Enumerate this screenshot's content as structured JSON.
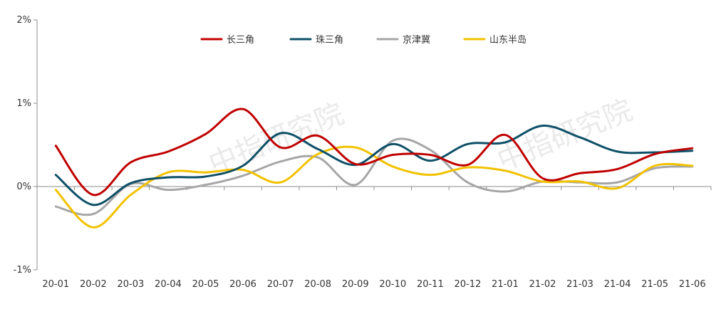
{
  "chart_data": {
    "type": "line",
    "title": "",
    "xlabel": "",
    "ylabel": "",
    "ylim": [
      -1,
      2
    ],
    "yticks": [
      -1,
      0,
      1,
      2
    ],
    "ytick_labels": [
      "-1%",
      "0%",
      "1%",
      "2%"
    ],
    "categories": [
      "20-01",
      "20-02",
      "20-03",
      "20-04",
      "20-05",
      "20-06",
      "20-07",
      "20-08",
      "20-09",
      "20-10",
      "20-11",
      "20-12",
      "21-01",
      "21-02",
      "21-03",
      "21-04",
      "21-05",
      "21-06"
    ],
    "legend_position": "top",
    "grid": false,
    "series": [
      {
        "name": "长三角",
        "color": "#C00000",
        "values": [
          0.49,
          -0.1,
          0.29,
          0.42,
          0.63,
          0.93,
          0.47,
          0.61,
          0.27,
          0.38,
          0.38,
          0.26,
          0.62,
          0.1,
          0.16,
          0.21,
          0.39,
          0.46
        ]
      },
      {
        "name": "珠三角",
        "color": "#0E5068",
        "values": [
          0.14,
          -0.22,
          0.04,
          0.11,
          0.12,
          0.25,
          0.64,
          0.45,
          0.26,
          0.51,
          0.31,
          0.51,
          0.53,
          0.73,
          0.59,
          0.42,
          0.41,
          0.43
        ]
      },
      {
        "name": "京津冀",
        "color": "#A6A6A6",
        "values": [
          -0.24,
          -0.33,
          0.03,
          -0.04,
          0.02,
          0.13,
          0.3,
          0.35,
          0.02,
          0.55,
          0.44,
          0.05,
          -0.06,
          0.06,
          0.05,
          0.05,
          0.22,
          0.24
        ]
      },
      {
        "name": "山东半岛",
        "color": "#F2C200",
        "values": [
          -0.04,
          -0.49,
          -0.1,
          0.17,
          0.17,
          0.2,
          0.05,
          0.39,
          0.47,
          0.24,
          0.14,
          0.23,
          0.19,
          0.06,
          0.06,
          -0.02,
          0.25,
          0.25
        ]
      }
    ]
  },
  "watermarks": [
    "中指研究院",
    "中指研究院"
  ]
}
